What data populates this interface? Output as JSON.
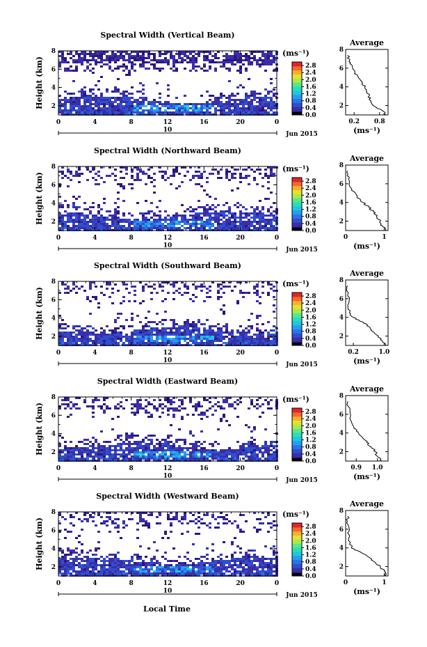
{
  "figure": {
    "xlabel": "Local Time",
    "date_label": "Jun 2015",
    "day_label": "10",
    "unit_label": "(ms⁻¹)"
  },
  "chart_data": [
    {
      "type": "heatmap",
      "title": "Spectral Width (Vertical Beam)",
      "ylabel": "Height (km)",
      "x_ticks": [
        "0",
        "4",
        "8",
        "12",
        "16",
        "20",
        "0"
      ],
      "y_ticks": [
        "2",
        "4",
        "6",
        "8"
      ],
      "xlim": [
        0,
        24
      ],
      "ylim": [
        1,
        8
      ],
      "colorbar": {
        "unit": "(ms⁻¹)",
        "ticks": [
          "0.0",
          "0.4",
          "0.8",
          "1.2",
          "1.6",
          "2.0",
          "2.4",
          "2.8"
        ],
        "range": [
          0,
          3.0
        ]
      },
      "profile": {
        "title": "Average",
        "x_ticks": [
          "0.2",
          "0.8"
        ],
        "y_ticks": [
          "2",
          "4",
          "6",
          "8"
        ],
        "xlabel": "(ms⁻¹)",
        "xlim": [
          0,
          1
        ],
        "ylim": [
          1,
          8
        ],
        "x": [
          0.95,
          0.85,
          0.65,
          0.6,
          0.55,
          0.5,
          0.45,
          0.38,
          0.3,
          0.22,
          0.1,
          0.08,
          0.05
        ],
        "y": [
          1.0,
          1.5,
          2.0,
          2.5,
          3.0,
          3.5,
          4.0,
          4.5,
          5.0,
          5.5,
          6.5,
          7.0,
          7.4
        ]
      }
    },
    {
      "type": "heatmap",
      "title": "Spectral Width (Northward Beam)",
      "ylabel": "Height (km)",
      "x_ticks": [
        "0",
        "4",
        "8",
        "12",
        "16",
        "20",
        "0"
      ],
      "y_ticks": [
        "2",
        "4",
        "6",
        "8"
      ],
      "xlim": [
        0,
        24
      ],
      "ylim": [
        1,
        8
      ],
      "colorbar": {
        "unit": "(ms⁻¹)",
        "ticks": [
          "0.0",
          "0.4",
          "0.8",
          "1.2",
          "1.6",
          "2.0",
          "2.4",
          "2.8"
        ],
        "range": [
          0,
          3.0
        ]
      },
      "profile": {
        "title": "Average",
        "x_ticks": [
          "0",
          "1"
        ],
        "y_ticks": [
          "2",
          "4",
          "6",
          "8"
        ],
        "xlabel": "(ms⁻¹)",
        "xlim": [
          0,
          1.1
        ],
        "ylim": [
          1,
          8
        ],
        "x": [
          1.05,
          0.95,
          0.9,
          0.8,
          0.72,
          0.6,
          0.45,
          0.3,
          0.25,
          0.15,
          0.08,
          0.05
        ],
        "y": [
          1.0,
          1.5,
          2.0,
          2.5,
          3.0,
          3.5,
          4.0,
          4.5,
          5.0,
          5.5,
          6.5,
          7.4
        ]
      }
    },
    {
      "type": "heatmap",
      "title": "Spectral Width (Southward Beam)",
      "ylabel": "Height (km)",
      "x_ticks": [
        "0",
        "4",
        "8",
        "12",
        "16",
        "20",
        "0"
      ],
      "y_ticks": [
        "2",
        "4",
        "6",
        "8"
      ],
      "xlim": [
        0,
        24
      ],
      "ylim": [
        1,
        8
      ],
      "colorbar": {
        "unit": "(ms⁻¹)",
        "ticks": [
          "0.0",
          "0.4",
          "0.8",
          "1.2",
          "1.6",
          "2.0",
          "2.4",
          "2.8"
        ],
        "range": [
          0,
          3.0
        ]
      },
      "profile": {
        "title": "Average",
        "x_ticks": [
          "0.2",
          "1.0"
        ],
        "y_ticks": [
          "2",
          "4",
          "6",
          "8"
        ],
        "xlabel": "(ms⁻¹)",
        "xlim": [
          0,
          1.1
        ],
        "ylim": [
          1,
          8
        ],
        "x": [
          1.05,
          0.95,
          0.85,
          0.7,
          0.6,
          0.45,
          0.2,
          0.1,
          0.08,
          0.06,
          0.05
        ],
        "y": [
          1.0,
          1.5,
          2.0,
          2.5,
          3.0,
          3.5,
          4.0,
          4.5,
          5.5,
          6.5,
          7.4
        ]
      }
    },
    {
      "type": "heatmap",
      "title": "Spectral Width (Eastward Beam)",
      "ylabel": "Height (km)",
      "x_ticks": [
        "0",
        "4",
        "8",
        "12",
        "16",
        "20",
        "0"
      ],
      "y_ticks": [
        "2",
        "4",
        "6",
        "8"
      ],
      "xlim": [
        0,
        24
      ],
      "ylim": [
        1,
        8
      ],
      "colorbar": {
        "unit": "(ms⁻¹)",
        "ticks": [
          "0.0",
          "0.4",
          "0.8",
          "1.2",
          "1.6",
          "2.0",
          "2.4",
          "2.8"
        ],
        "range": [
          0,
          3.0
        ]
      },
      "profile": {
        "title": "Average",
        "x_ticks": [
          "0.9",
          "1.0"
        ],
        "y_ticks": [
          "2",
          "4",
          "6",
          "8"
        ],
        "xlabel": "(ms⁻¹)",
        "xlim": [
          0.85,
          1.05
        ],
        "ylim": [
          1,
          8
        ],
        "x": [
          1.02,
          1.0,
          0.99,
          0.97,
          0.95,
          0.93,
          0.91,
          0.89,
          0.87,
          0.86
        ],
        "y": [
          1.0,
          1.5,
          2.0,
          2.5,
          3.0,
          3.5,
          4.0,
          4.5,
          5.5,
          7.4
        ]
      }
    },
    {
      "type": "heatmap",
      "title": "Spectral Width (Westward Beam)",
      "ylabel": "Height (km)",
      "x_ticks": [
        "0",
        "4",
        "8",
        "12",
        "16",
        "20",
        "0"
      ],
      "y_ticks": [
        "2",
        "4",
        "6",
        "8"
      ],
      "xlim": [
        0,
        24
      ],
      "ylim": [
        1,
        8
      ],
      "colorbar": {
        "unit": "(ms⁻¹)",
        "ticks": [
          "0.0",
          "0.4",
          "0.8",
          "1.2",
          "1.6",
          "2.0",
          "2.4",
          "2.8"
        ],
        "range": [
          0,
          3.0
        ]
      },
      "profile": {
        "title": "Average",
        "x_ticks": [
          "0",
          "1"
        ],
        "y_ticks": [
          "2",
          "4",
          "6",
          "8"
        ],
        "xlabel": "(ms⁻¹)",
        "xlim": [
          0,
          1.1
        ],
        "ylim": [
          1,
          8
        ],
        "x": [
          1.05,
          1.0,
          0.9,
          0.75,
          0.6,
          0.4,
          0.15,
          0.08,
          0.06,
          0.05
        ],
        "y": [
          1.0,
          1.5,
          2.0,
          2.5,
          3.0,
          3.5,
          4.0,
          5.0,
          6.5,
          7.4
        ]
      }
    }
  ]
}
